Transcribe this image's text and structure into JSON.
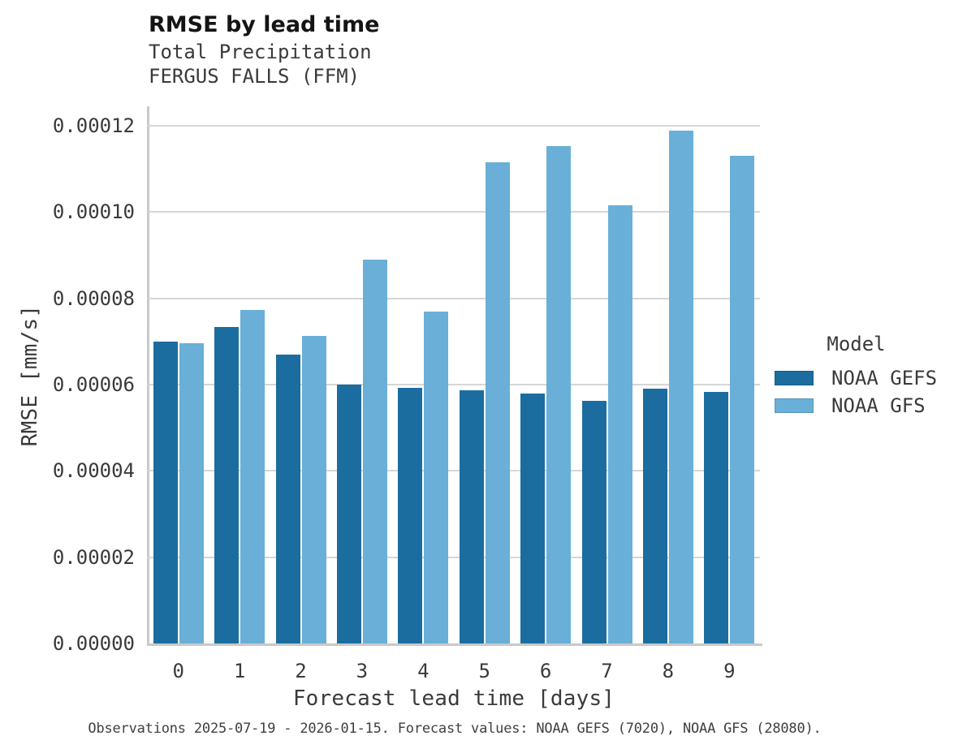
{
  "chart_data": {
    "type": "bar",
    "title": "RMSE by lead time",
    "subtitle_lines": [
      "Total Precipitation",
      "FERGUS FALLS (FFM)"
    ],
    "xlabel": "Forecast lead time [days]",
    "ylabel": "RMSE [mm/s]",
    "categories": [
      "0",
      "1",
      "2",
      "3",
      "4",
      "5",
      "6",
      "7",
      "8",
      "9"
    ],
    "series": [
      {
        "name": "NOAA GEFS",
        "color": "#1B6D9F",
        "values": [
          7e-05,
          7.33e-05,
          6.69e-05,
          6e-05,
          5.92e-05,
          5.86e-05,
          5.8e-05,
          5.62e-05,
          5.9e-05,
          5.83e-05
        ]
      },
      {
        "name": "NOAA GFS",
        "color": "#69AFD8",
        "values": [
          6.95e-05,
          7.73e-05,
          7.12e-05,
          8.89e-05,
          7.69e-05,
          0.0001115,
          0.0001153,
          0.0001015,
          0.0001188,
          0.000113
        ]
      }
    ],
    "ylim": [
      0,
      0.00012
    ],
    "yticks": [
      {
        "value": 0.0,
        "label": "0.00000"
      },
      {
        "value": 2e-05,
        "label": "0.00002"
      },
      {
        "value": 4e-05,
        "label": "0.00004"
      },
      {
        "value": 6e-05,
        "label": "0.00006"
      },
      {
        "value": 8e-05,
        "label": "0.00008"
      },
      {
        "value": 0.0001,
        "label": "0.00010"
      },
      {
        "value": 0.00012,
        "label": "0.00012"
      }
    ],
    "grid": "horizontal",
    "legend_title": "Model",
    "legend_position": "right",
    "caption": "Observations 2025-07-19 - 2026-01-15. Forecast values: NOAA GEFS (7020), NOAA GFS (28080)."
  }
}
